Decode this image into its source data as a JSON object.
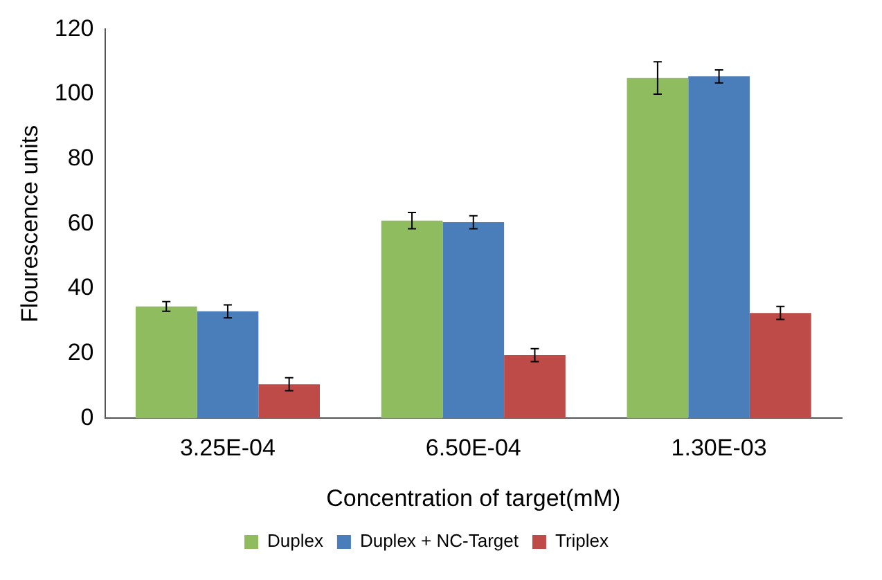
{
  "chart_data": {
    "type": "bar",
    "xlabel": "Concentration of target(mM)",
    "ylabel": "Flourescence units",
    "categories": [
      "3.25E-04",
      "6.50E-04",
      "1.30E-03"
    ],
    "series": [
      {
        "name": "Duplex",
        "color": "#8fbc5f",
        "values": [
          34.5,
          61,
          105
        ],
        "errors": [
          1.5,
          2.5,
          5
        ]
      },
      {
        "name": "Duplex + NC-Target",
        "color": "#4a7ebb",
        "values": [
          33,
          60.5,
          105.5
        ],
        "errors": [
          2,
          2,
          2
        ]
      },
      {
        "name": "Triplex",
        "color": "#be4b48",
        "values": [
          10.5,
          19.5,
          32.5
        ],
        "errors": [
          2,
          2,
          2
        ]
      }
    ],
    "ylim": [
      0,
      120
    ],
    "yticks": [
      0,
      20,
      40,
      60,
      80,
      100,
      120
    ],
    "grid": false,
    "legend": "bottom"
  }
}
